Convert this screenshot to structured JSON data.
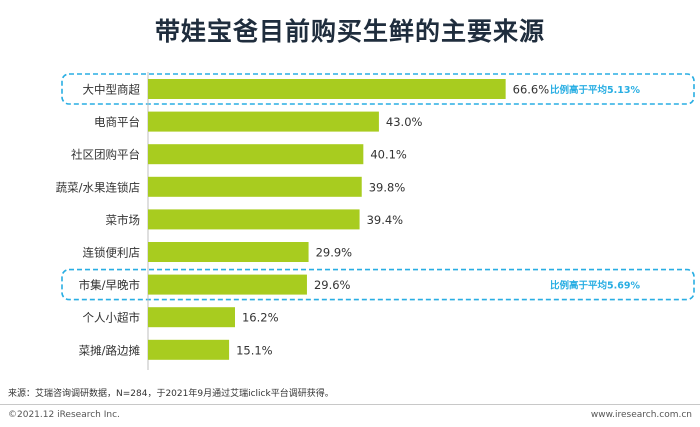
{
  "title": "带娃宝爸目前购买生鲜的主要来源",
  "chart_data": {
    "type": "bar",
    "orientation": "horizontal",
    "categories": [
      "大中型商超",
      "电商平台",
      "社区团购平台",
      "蔬菜/水果连锁店",
      "菜市场",
      "连锁便利店",
      "市集/早晚市",
      "个人小超市",
      "菜摊/路边摊"
    ],
    "values": [
      66.6,
      43.0,
      40.1,
      39.8,
      39.4,
      29.9,
      29.6,
      16.2,
      15.1
    ],
    "value_labels": [
      "66.6%",
      "43.0%",
      "40.1%",
      "39.8%",
      "39.4%",
      "29.9%",
      "29.6%",
      "16.2%",
      "15.1%"
    ],
    "bar_color": "#a8cc1f",
    "highlights": [
      {
        "category_index": 0,
        "text": "比例高于平均5.13%"
      },
      {
        "category_index": 6,
        "text": "比例高于平均5.69%"
      }
    ],
    "highlight_color": "#29aee3"
  },
  "source": "来源：艾瑞咨询调研数据，N=284，于2021年9月通过艾瑞iclick平台调研获得。",
  "footer": {
    "copyright": "©2021.12 iResearch Inc.",
    "website": "www.iresearch.com.cn"
  }
}
